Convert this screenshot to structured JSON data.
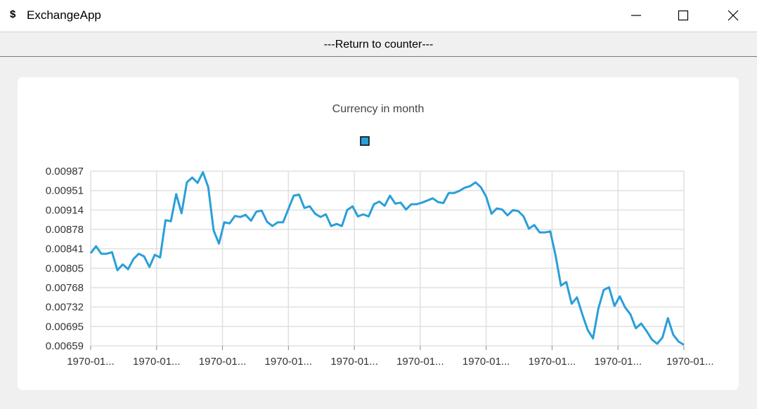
{
  "window": {
    "icon_glyph": "$",
    "icon_name": "dollar-icon",
    "title": "ExchangeApp",
    "controls": [
      "minimize-icon",
      "maximize-icon",
      "close-icon"
    ]
  },
  "return_button": {
    "label": "---Return to counter---"
  },
  "colors": {
    "line": "#2a9fd8",
    "grid": "#e0e0e0",
    "card": "#ffffff",
    "background": "#f0f0f0"
  },
  "chart_data": {
    "type": "line",
    "title": "Currency in month",
    "legend": {
      "placement": "top-center",
      "entries": [
        ""
      ]
    },
    "ylim": [
      0.00659,
      0.00987
    ],
    "y_ticks": [
      "0.00987",
      "0.00951",
      "0.00914",
      "0.00878",
      "0.00841",
      "0.00805",
      "0.00768",
      "0.00732",
      "0.00695",
      "0.00659"
    ],
    "x_ticks": [
      "1970-01...",
      "1970-01...",
      "1970-01...",
      "1970-01...",
      "1970-01...",
      "1970-01...",
      "1970-01...",
      "1970-01...",
      "1970-01...",
      "1970-01..."
    ],
    "grid": true,
    "series": [
      {
        "name": "",
        "color": "#2a9fd8",
        "values": [
          0.00833,
          0.00846,
          0.00832,
          0.00832,
          0.00835,
          0.00801,
          0.00812,
          0.00803,
          0.00822,
          0.00832,
          0.00827,
          0.00807,
          0.0083,
          0.00825,
          0.00895,
          0.00893,
          0.00944,
          0.00908,
          0.00966,
          0.00975,
          0.00965,
          0.00985,
          0.00957,
          0.00876,
          0.00851,
          0.00891,
          0.00889,
          0.00903,
          0.00901,
          0.00905,
          0.00894,
          0.00911,
          0.00913,
          0.00892,
          0.00884,
          0.00891,
          0.00891,
          0.00916,
          0.00941,
          0.00943,
          0.00918,
          0.00921,
          0.00907,
          0.00901,
          0.00906,
          0.00884,
          0.00888,
          0.00884,
          0.00914,
          0.00921,
          0.00902,
          0.00906,
          0.00902,
          0.00925,
          0.0093,
          0.00922,
          0.00941,
          0.00926,
          0.00928,
          0.00915,
          0.00925,
          0.00925,
          0.00928,
          0.00932,
          0.00936,
          0.00929,
          0.00927,
          0.00946,
          0.00946,
          0.0095,
          0.00956,
          0.00959,
          0.00966,
          0.00957,
          0.00939,
          0.00907,
          0.00917,
          0.00915,
          0.00904,
          0.00914,
          0.00912,
          0.00902,
          0.00879,
          0.00886,
          0.00872,
          0.00872,
          0.00874,
          0.00828,
          0.00772,
          0.00779,
          0.00738,
          0.0075,
          0.00718,
          0.00689,
          0.00673,
          0.00729,
          0.00764,
          0.00769,
          0.00734,
          0.00752,
          0.00731,
          0.00718,
          0.00692,
          0.00701,
          0.00687,
          0.00671,
          0.00663,
          0.00675,
          0.00711,
          0.0068,
          0.00667,
          0.00661
        ]
      }
    ]
  }
}
